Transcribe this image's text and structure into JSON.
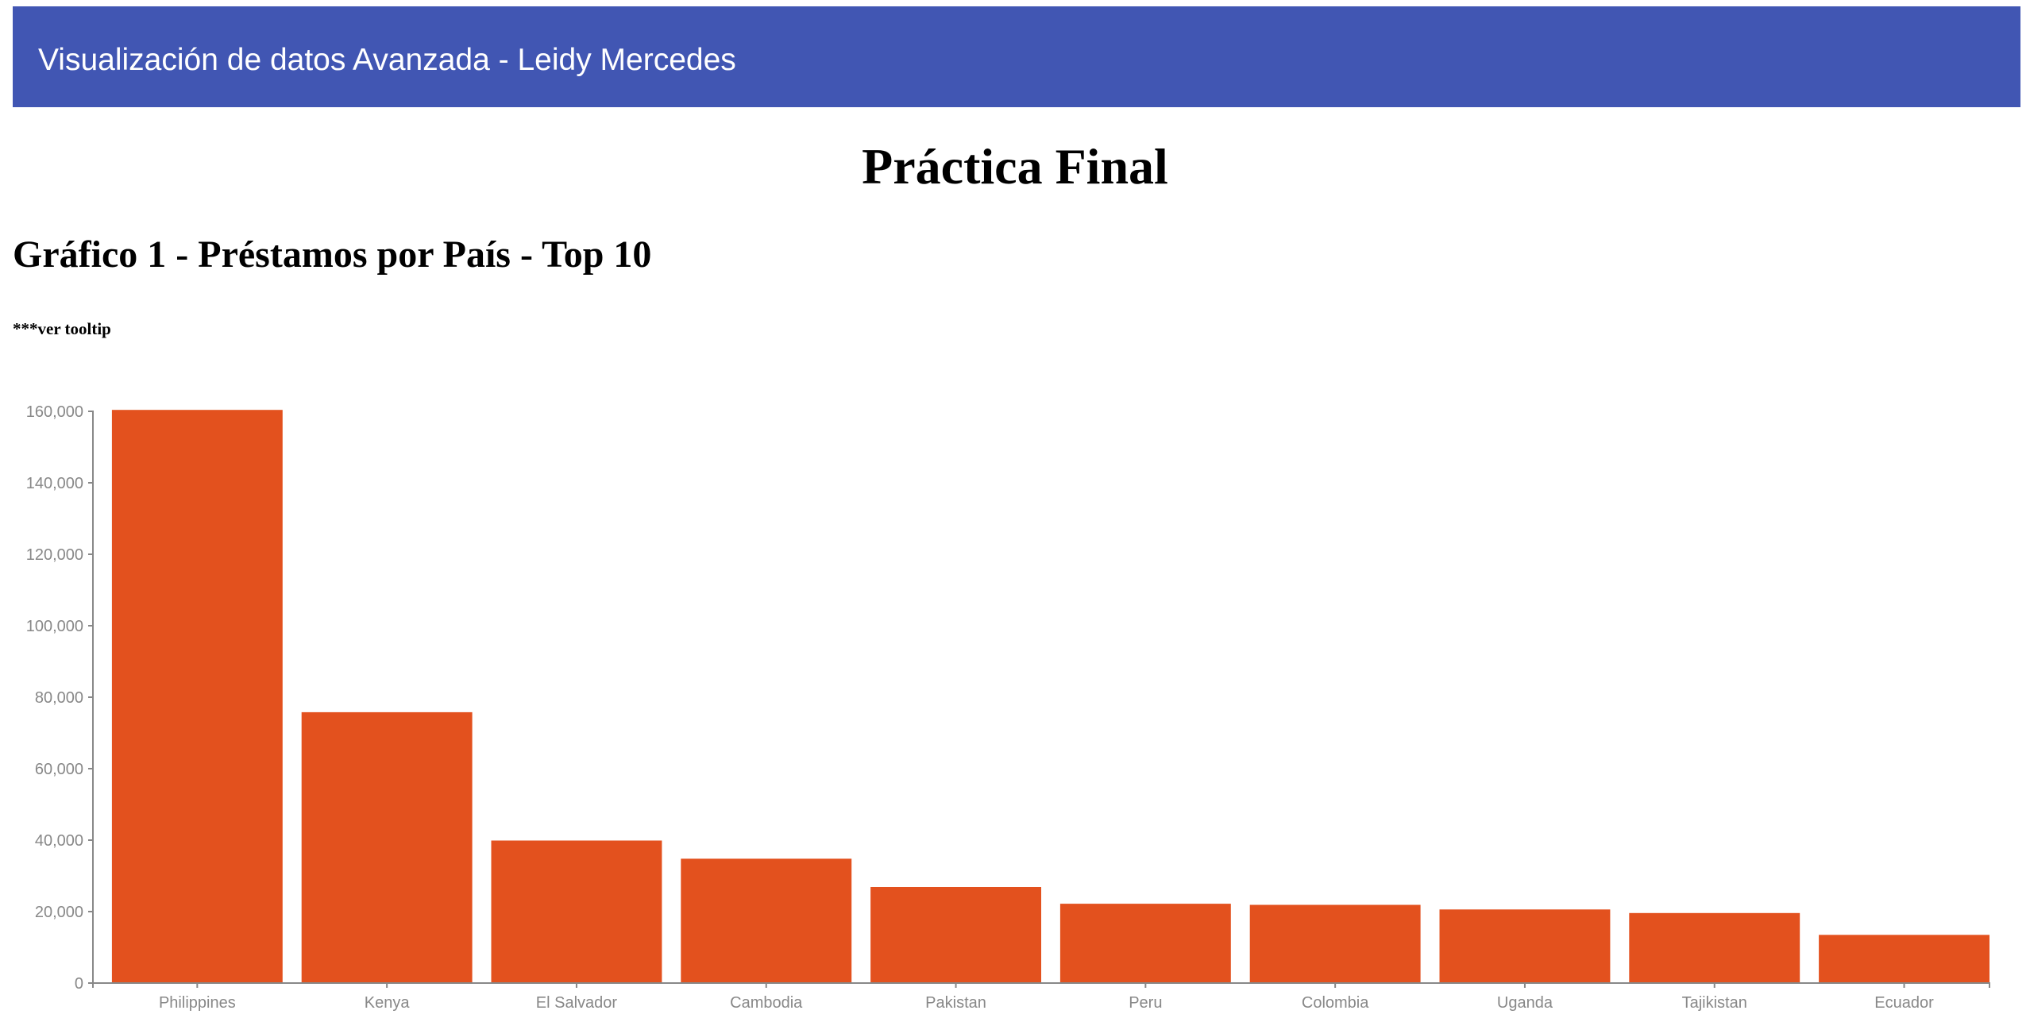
{
  "header": {
    "title": "Visualización de datos Avanzada - Leidy Mercedes",
    "background": "#4156b3"
  },
  "page": {
    "title": "Práctica Final",
    "chart_heading": "Gráfico 1 - Préstamos por País - Top 10",
    "note": "***ver tooltip"
  },
  "chart_data": {
    "type": "bar",
    "categories": [
      "Philippines",
      "Kenya",
      "El Salvador",
      "Cambodia",
      "Pakistan",
      "Peru",
      "Colombia",
      "Uganda",
      "Tajikistan",
      "Ecuador"
    ],
    "values": [
      160400,
      75800,
      39900,
      34800,
      26900,
      22200,
      21900,
      20600,
      19600,
      13500
    ],
    "ylim": [
      0,
      160000
    ],
    "yticks": [
      0,
      20000,
      40000,
      60000,
      80000,
      100000,
      120000,
      140000,
      160000
    ],
    "ytick_labels": [
      "0",
      "20,000",
      "40,000",
      "60,000",
      "80,000",
      "100,000",
      "120,000",
      "140,000",
      "160,000"
    ],
    "bar_color": "#e3511e",
    "axis_color": "#888888",
    "grid": false,
    "title": "",
    "xlabel": "",
    "ylabel": ""
  }
}
